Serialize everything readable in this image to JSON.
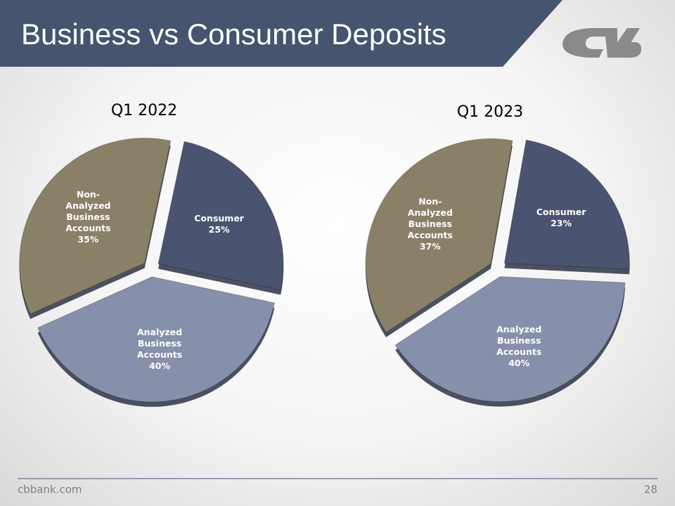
{
  "title": "Business vs Consumer Deposits",
  "footer": {
    "website": "cbbank.com",
    "page": "28"
  },
  "chart_data": [
    {
      "type": "pie",
      "title": "Q1 2022",
      "categories": [
        "Consumer",
        "Analyzed Business Accounts",
        "Non-Analyzed Business Accounts"
      ],
      "values": [
        25,
        40,
        35
      ],
      "value_labels": [
        "25%",
        "40%",
        "35%"
      ],
      "colors": [
        "#4a5470",
        "#8690ab",
        "#8a8068"
      ]
    },
    {
      "type": "pie",
      "title": "Q1 2023",
      "categories": [
        "Consumer",
        "Analyzed Business Accounts",
        "Non-Analyzed Business Accounts"
      ],
      "values": [
        23,
        40,
        37
      ],
      "value_labels": [
        "23%",
        "40%",
        "37%"
      ],
      "colors": [
        "#4a5470",
        "#8690ab",
        "#8a8068"
      ]
    }
  ]
}
